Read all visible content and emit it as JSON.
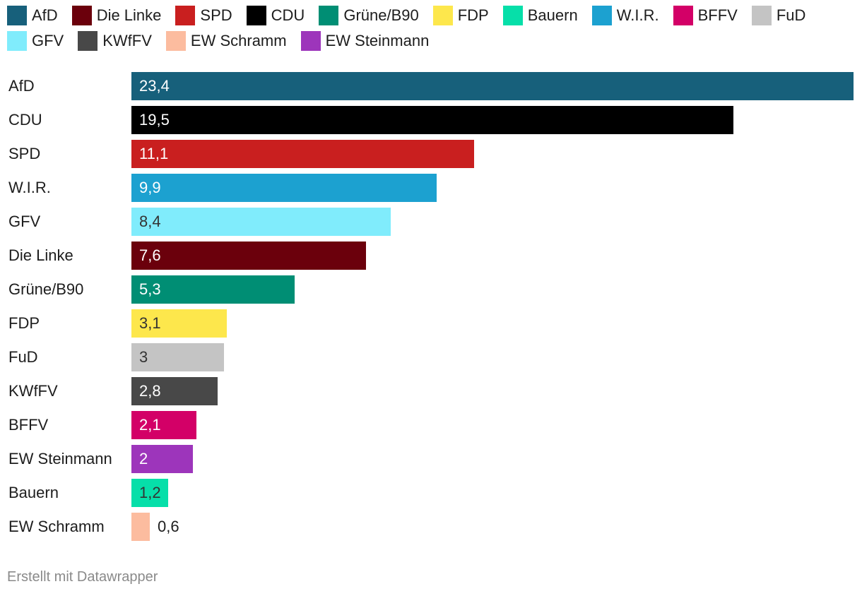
{
  "chart_data": {
    "type": "bar",
    "orientation": "horizontal",
    "title": "",
    "xlabel": "",
    "ylabel": "",
    "xlim": [
      0,
      23.4
    ],
    "grid": false,
    "legend_position": "top",
    "legend": [
      {
        "name": "AfD",
        "color": "#17607b"
      },
      {
        "name": "Die Linke",
        "color": "#6b000c"
      },
      {
        "name": "SPD",
        "color": "#c91f1f"
      },
      {
        "name": "CDU",
        "color": "#000000"
      },
      {
        "name": "Grüne/B90",
        "color": "#008e74"
      },
      {
        "name": "FDP",
        "color": "#fde74c"
      },
      {
        "name": "Bauern",
        "color": "#06dfa9"
      },
      {
        "name": "W.I.R.",
        "color": "#1ca1d0"
      },
      {
        "name": "BFFV",
        "color": "#d30067"
      },
      {
        "name": "FuD",
        "color": "#c4c4c4"
      },
      {
        "name": "GFV",
        "color": "#80ecfc"
      },
      {
        "name": "KWfFV",
        "color": "#484848"
      },
      {
        "name": "EW Schramm",
        "color": "#fcbc9f"
      },
      {
        "name": "EW Steinmann",
        "color": "#9d35bb"
      }
    ],
    "bars": [
      {
        "category": "AfD",
        "value": 23.4,
        "label": "23,4",
        "color": "#17607b",
        "text_color": "#ffffff"
      },
      {
        "category": "CDU",
        "value": 19.5,
        "label": "19,5",
        "color": "#000000",
        "text_color": "#ffffff"
      },
      {
        "category": "SPD",
        "value": 11.1,
        "label": "11,1",
        "color": "#c91f1f",
        "text_color": "#ffffff"
      },
      {
        "category": "W.I.R.",
        "value": 9.9,
        "label": "9,9",
        "color": "#1ca1d0",
        "text_color": "#ffffff"
      },
      {
        "category": "GFV",
        "value": 8.4,
        "label": "8,4",
        "color": "#80ecfc",
        "text_color": "#333333"
      },
      {
        "category": "Die Linke",
        "value": 7.6,
        "label": "7,6",
        "color": "#6b000c",
        "text_color": "#ffffff"
      },
      {
        "category": "Grüne/B90",
        "value": 5.3,
        "label": "5,3",
        "color": "#008e74",
        "text_color": "#ffffff"
      },
      {
        "category": "FDP",
        "value": 3.1,
        "label": "3,1",
        "color": "#fde74c",
        "text_color": "#333333"
      },
      {
        "category": "FuD",
        "value": 3,
        "label": "3",
        "color": "#c4c4c4",
        "text_color": "#333333"
      },
      {
        "category": "KWfFV",
        "value": 2.8,
        "label": "2,8",
        "color": "#484848",
        "text_color": "#ffffff"
      },
      {
        "category": "BFFV",
        "value": 2.1,
        "label": "2,1",
        "color": "#d30067",
        "text_color": "#ffffff"
      },
      {
        "category": "EW Steinmann",
        "value": 2,
        "label": "2",
        "color": "#9d35bb",
        "text_color": "#ffffff"
      },
      {
        "category": "Bauern",
        "value": 1.2,
        "label": "1,2",
        "color": "#06dfa9",
        "text_color": "#333333"
      },
      {
        "category": "EW Schramm",
        "value": 0.6,
        "label": "0,6",
        "color": "#fcbc9f",
        "text_color": "#1d1d1d"
      }
    ]
  },
  "footer": {
    "credit": "Erstellt mit Datawrapper"
  }
}
